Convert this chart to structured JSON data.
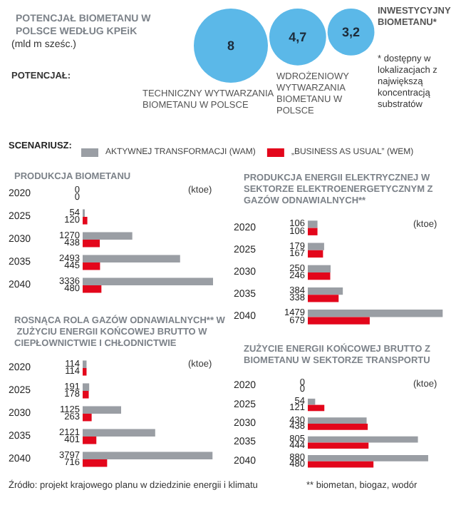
{
  "chart_data": [
    {
      "type": "other",
      "title": "POTENCJAŁ BIOMETANU W POLSCE WEDŁUG KPEiK",
      "subtitle": "(mld m sześc.)",
      "categories": [
        "TECHNICZNY WYTWARZANIA BIOMETANU W POLSCE",
        "WDROŻENIOWY WYTWARZANIA BIOMETANU W POLSCE",
        "INWESTYCYJNY BIOMETANU*"
      ],
      "values": [
        8,
        4.7,
        3.2
      ],
      "color": "#5bb8e8",
      "value_labels": [
        "8",
        "4,7",
        "3,2"
      ],
      "annotations": [
        "POTENCJAŁ:",
        "* dostępny w lokalizacjach z największą koncentracją substratów"
      ]
    },
    {
      "type": "bar",
      "orientation": "horizontal",
      "title": "PRODUKCJA BIOMETANU",
      "xlabel": "(ktoe)",
      "categories": [
        "2020",
        "2025",
        "2030",
        "2035",
        "2040"
      ],
      "legend": "top",
      "legend_title": "SCENARIUSZ:",
      "data_labels": true,
      "series": [
        {
          "name": "AKTYWNEJ TRANSFORMACJI (WAM)",
          "color": "#9a9ea4",
          "values": [
            0,
            54,
            1270,
            2493,
            3336
          ]
        },
        {
          "name": "„BUSINESS AS USUAL” (WEM)",
          "color": "#e3061b",
          "values": [
            0,
            120,
            438,
            445,
            480
          ]
        }
      ]
    },
    {
      "type": "bar",
      "orientation": "horizontal",
      "title": "PRODUKCJA ENERGII ELEKTRYCZNEJ W SEKTORZE ELEKTROENERGETYCZNYM Z GAZÓW ODNAWIALNYCH**",
      "xlabel": "(ktoe)",
      "categories": [
        "2020",
        "2025",
        "2030",
        "2035",
        "2040"
      ],
      "data_labels": true,
      "series": [
        {
          "color": "#9a9ea4",
          "values": [
            106,
            179,
            250,
            384,
            1479
          ]
        },
        {
          "color": "#e3061b",
          "values": [
            106,
            167,
            246,
            338,
            679
          ]
        }
      ]
    },
    {
      "type": "bar",
      "orientation": "horizontal",
      "title": "ROSNĄCA ROLA GAZÓW ODNAWIALNYCH** W ZUŻYCIU ENERGII KOŃCOWEJ BRUTTO W CIEPŁOWNICTWIE I CHŁODNICTWIE",
      "xlabel": "(ktoe)",
      "categories": [
        "2020",
        "2025",
        "2030",
        "2035",
        "2040"
      ],
      "data_labels": true,
      "annotations": [
        "Źródło: projekt krajowego planu w dziedzinie energii i klimatu"
      ],
      "series": [
        {
          "color": "#9a9ea4",
          "values": [
            114,
            191,
            1125,
            2121,
            3797
          ]
        },
        {
          "color": "#e3061b",
          "values": [
            114,
            178,
            263,
            401,
            716
          ]
        }
      ]
    },
    {
      "type": "bar",
      "orientation": "horizontal",
      "title": "ZUŻYCIE ENERGII KOŃCOWEJ BRUTTO Z BIOMETANU W SEKTORZE TRANSPORTU",
      "xlabel": "(ktoe)",
      "categories": [
        "2020",
        "2025",
        "2030",
        "2035",
        "2040"
      ],
      "data_labels": true,
      "annotations": [
        "** biometan, biogaz, wodór"
      ],
      "series": [
        {
          "color": "#9a9ea4",
          "values": [
            0,
            54,
            430,
            805,
            880
          ]
        },
        {
          "color": "#e3061b",
          "values": [
            0,
            121,
            438,
            444,
            480
          ]
        }
      ]
    }
  ]
}
